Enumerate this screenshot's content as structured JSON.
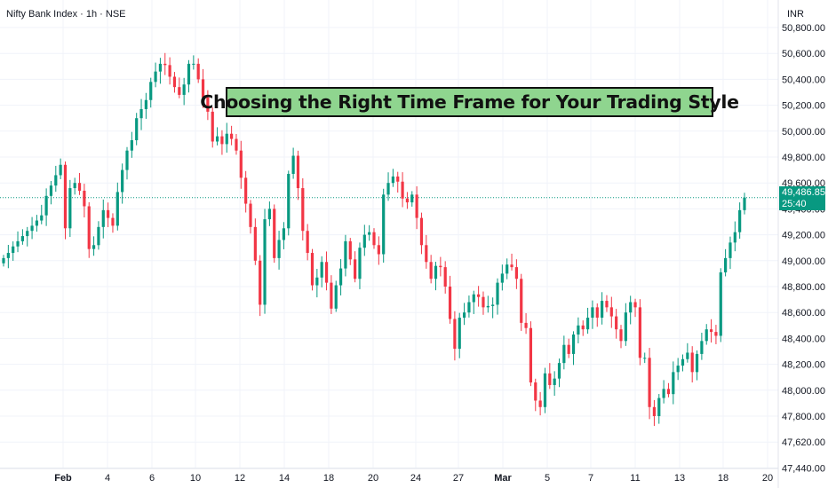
{
  "header": {
    "symbol": "Nifty Bank Index · 1h · NSE",
    "currency": "INR"
  },
  "banner": {
    "text": "Choosing the Right Time Frame for Your Trading Style"
  },
  "price_tag": {
    "price": "49,486.85",
    "countdown": "25:40"
  },
  "colors": {
    "up": "#089981",
    "down": "#f23645",
    "last_line": "#089981",
    "banner_bg": "#8fd58f",
    "grid": "#f0f3fa"
  },
  "chart_data": {
    "type": "candlestick",
    "title": "Nifty Bank Index · 1h · NSE",
    "ylabel": "INR",
    "ylim": [
      47340,
      50700
    ],
    "y_ticks": [
      "50,800.00",
      "50,600.00",
      "50,400.00",
      "50,200.00",
      "50,000.00",
      "49,800.00",
      "49,600.00",
      "49,400.00",
      "49,200.00",
      "49,000.00",
      "48,800.00",
      "48,600.00",
      "48,400.00",
      "48,200.00",
      "48,000.00",
      "47,800.00",
      "47,620.00",
      "47,440.00"
    ],
    "x_ticks": [
      {
        "label": "Feb",
        "bold": true
      },
      {
        "label": "4"
      },
      {
        "label": "6"
      },
      {
        "label": "10"
      },
      {
        "label": "12"
      },
      {
        "label": "14"
      },
      {
        "label": "18"
      },
      {
        "label": "20"
      },
      {
        "label": "24"
      },
      {
        "label": "27"
      },
      {
        "label": "Mar",
        "bold": true
      },
      {
        "label": "5"
      },
      {
        "label": "7"
      },
      {
        "label": "11"
      },
      {
        "label": "13"
      },
      {
        "label": "18"
      },
      {
        "label": "20"
      }
    ],
    "last_price": 49486.85,
    "grid": true,
    "closes": [
      49020,
      49060,
      49110,
      49150,
      49190,
      49230,
      49270,
      49310,
      49350,
      49500,
      49580,
      49660,
      49740,
      49250,
      49560,
      49600,
      49540,
      49420,
      49090,
      49120,
      49260,
      49390,
      49330,
      49270,
      49530,
      49700,
      49850,
      49930,
      50100,
      50170,
      50240,
      50380,
      50460,
      50520,
      50510,
      50420,
      50340,
      50280,
      50360,
      50520,
      50520,
      50400,
      50260,
      50150,
      49920,
      49960,
      49900,
      49980,
      49940,
      49850,
      49640,
      49440,
      49260,
      49000,
      48660,
      49320,
      49400,
      49020,
      49160,
      49250,
      49670,
      49810,
      49560,
      49230,
      49060,
      48810,
      48870,
      48990,
      48830,
      48630,
      48810,
      48940,
      49150,
      49010,
      48860,
      49100,
      49200,
      49220,
      49120,
      49050,
      49510,
      49600,
      49650,
      49610,
      49480,
      49450,
      49510,
      49330,
      49120,
      48990,
      48860,
      48960,
      48950,
      48800,
      48550,
      48320,
      48560,
      48600,
      48680,
      48740,
      48720,
      48640,
      48650,
      48660,
      48830,
      48900,
      48970,
      48950,
      48860,
      48520,
      48480,
      48060,
      47920,
      47870,
      48130,
      48040,
      48090,
      48210,
      48350,
      48280,
      48430,
      48500,
      48470,
      48560,
      48640,
      48560,
      48690,
      48640,
      48570,
      48470,
      48380,
      48600,
      48680,
      48640,
      48250,
      48250,
      47870,
      47800,
      47940,
      48010,
      47970,
      48140,
      48190,
      48240,
      48290,
      48140,
      48280,
      48380,
      48470,
      48450,
      48420,
      48910,
      49020,
      49140,
      49220,
      49390,
      49487
    ]
  }
}
